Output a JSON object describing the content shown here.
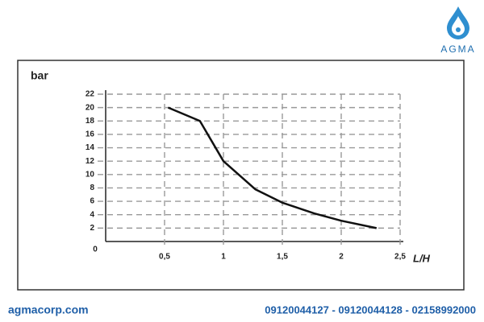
{
  "logo": "AGMA",
  "footer": {
    "website": "agmacorp.com",
    "phones": "09120044127 - 09120044128 - 02158992000"
  },
  "chart_data": {
    "type": "line",
    "y_label": "bar",
    "x_label": "L/H",
    "x": [
      0.53,
      0.8,
      1.0,
      1.27,
      1.5,
      1.77,
      2.0,
      2.3
    ],
    "values": [
      20,
      18,
      12,
      7.8,
      5.8,
      4.2,
      3.1,
      2
    ],
    "color": "#111111",
    "xlim": [
      0,
      2.5
    ],
    "xticks": [
      0,
      {
        "value": 0.5,
        "label": "0,5"
      },
      1,
      {
        "value": 1.5,
        "label": "1,5"
      },
      2,
      {
        "value": 2.5,
        "label": "2,5"
      }
    ],
    "ylim": [
      0,
      22
    ],
    "yticks": [
      2,
      4,
      6,
      8,
      10,
      12,
      14,
      16,
      18,
      20,
      22
    ],
    "grid": true
  }
}
